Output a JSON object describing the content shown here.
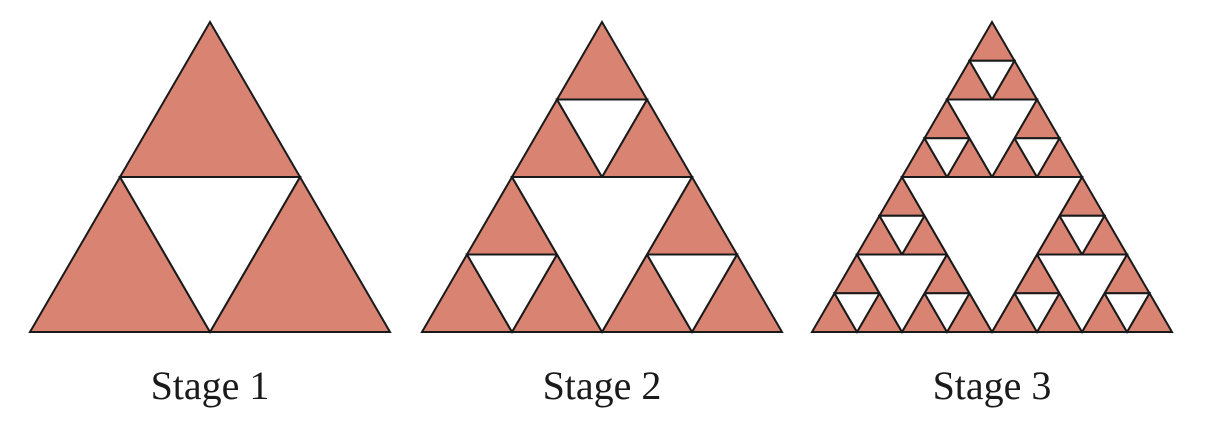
{
  "colors": {
    "fill": "#d98372",
    "hole": "#ffffff",
    "stroke": "#1a1a1a"
  },
  "stages": [
    {
      "label": "Stage 1",
      "level": 1
    },
    {
      "label": "Stage 2",
      "level": 2
    },
    {
      "label": "Stage 3",
      "level": 3
    }
  ]
}
